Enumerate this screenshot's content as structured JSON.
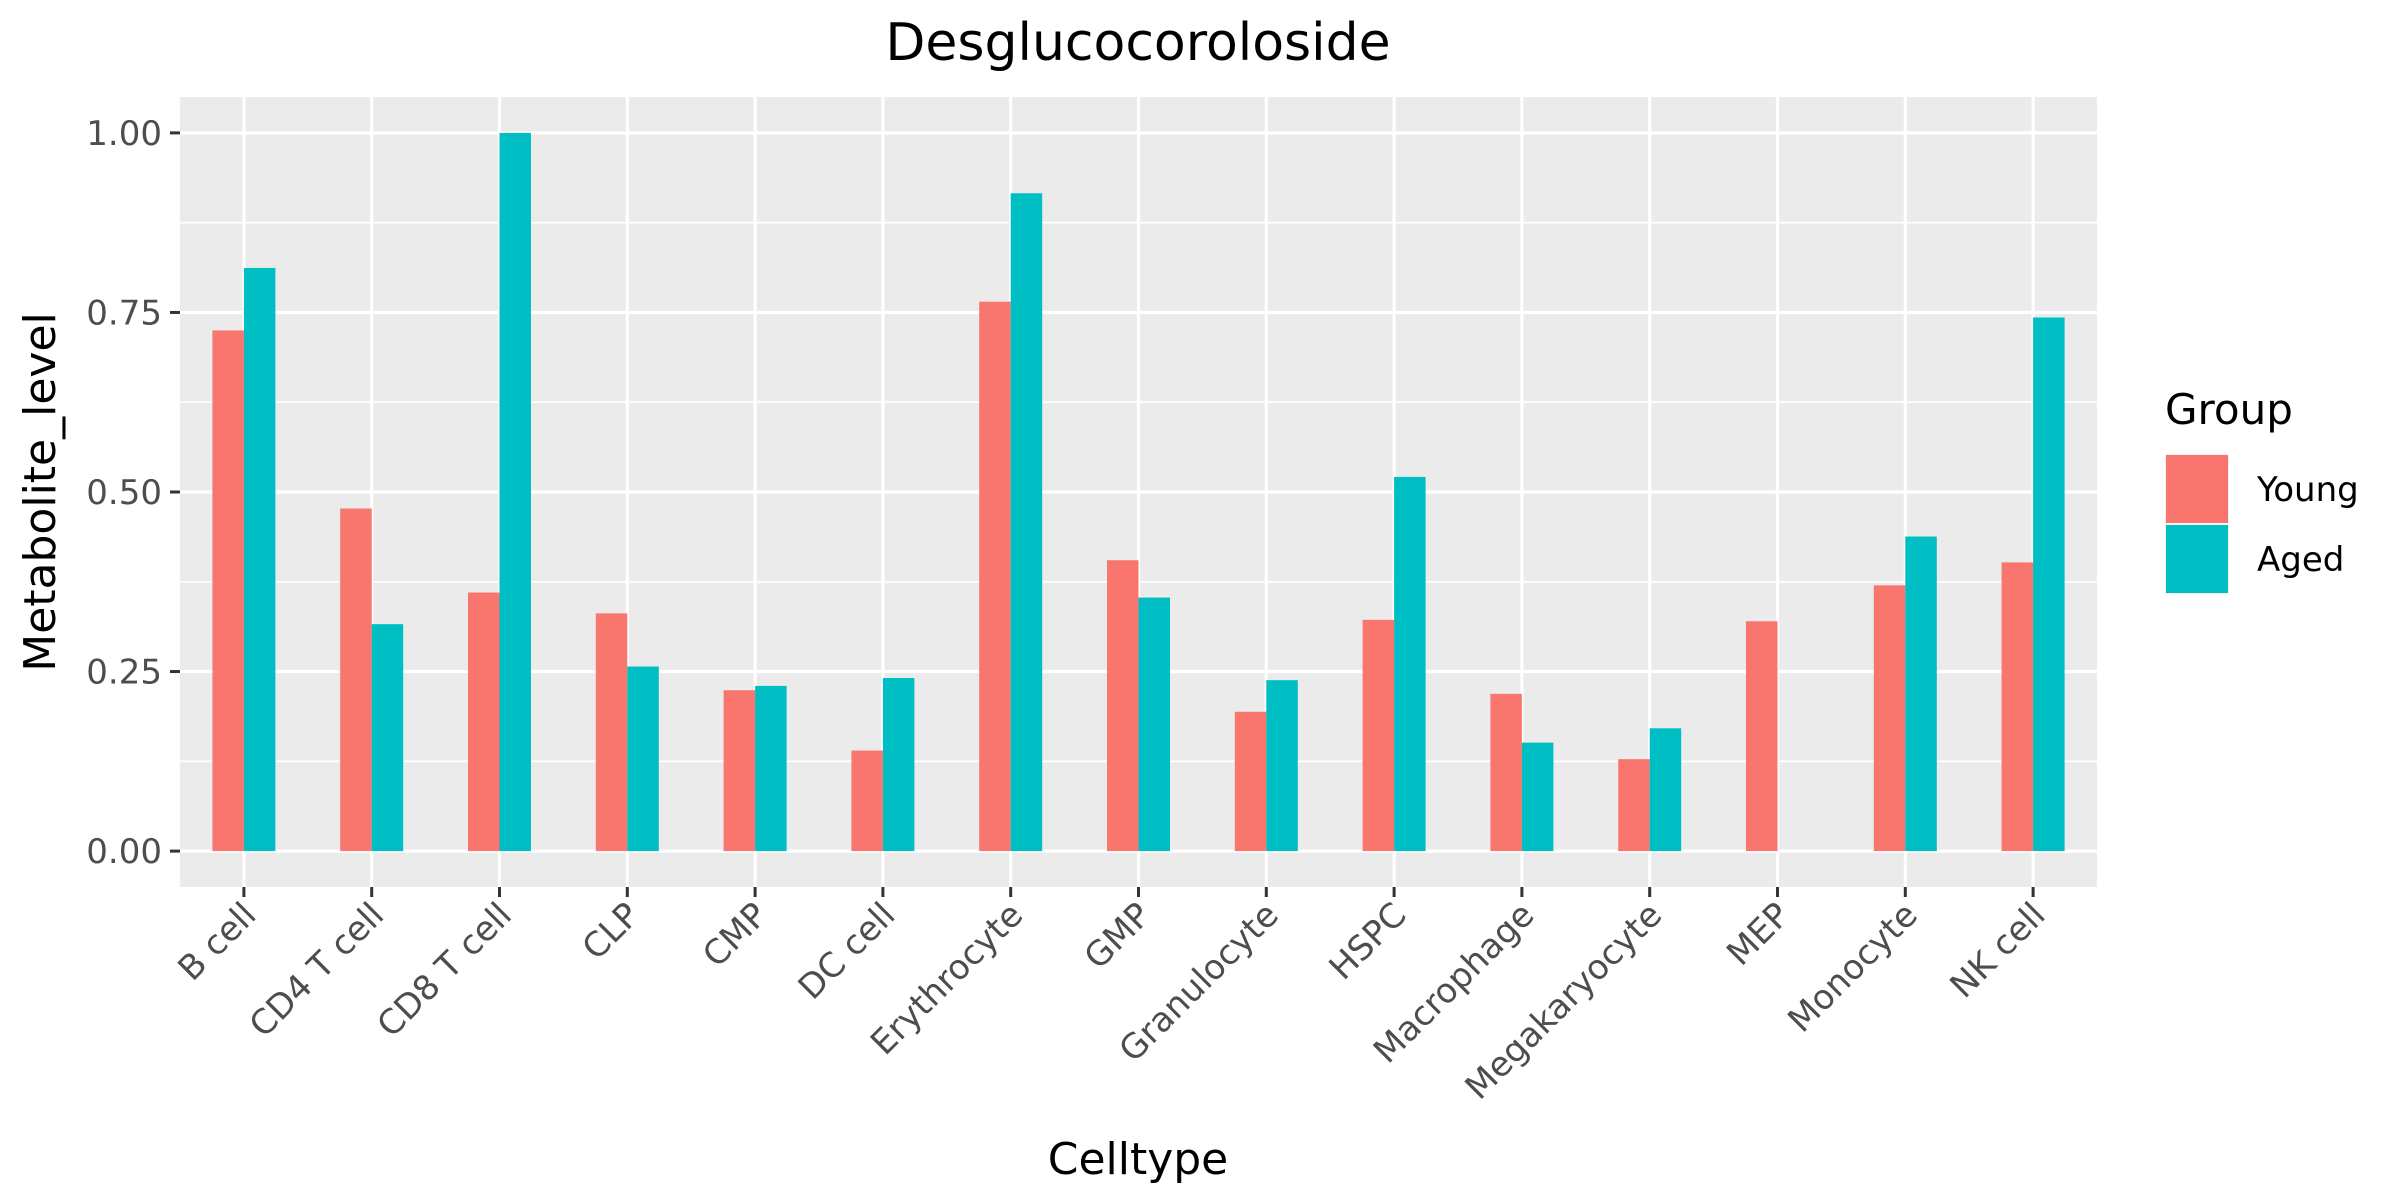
{
  "chart_data": {
    "type": "bar",
    "title": "Desglucocoroloside",
    "xlabel": "Celltype",
    "ylabel": "Metabolite_level",
    "categories": [
      "B cell",
      "CD4 T cell",
      "CD8 T cell",
      "CLP",
      "CMP",
      "DC cell",
      "Erythrocyte",
      "GMP",
      "Granulocyte",
      "HSPC",
      "Macrophage",
      "Megakaryocyte",
      "MEP",
      "Monocyte",
      "NK cell"
    ],
    "series": [
      {
        "name": "Young",
        "color": "#F8766D",
        "values": [
          0.725,
          0.477,
          0.36,
          0.331,
          0.224,
          0.14,
          0.765,
          0.405,
          0.194,
          0.322,
          0.219,
          0.128,
          0.32,
          0.37,
          0.402
        ]
      },
      {
        "name": "Aged",
        "color": "#00BFC4",
        "values": [
          0.812,
          0.316,
          1.0,
          0.257,
          0.23,
          0.241,
          0.916,
          0.353,
          0.238,
          0.521,
          0.151,
          0.171,
          null,
          0.438,
          0.743
        ]
      }
    ],
    "ylim": [
      -0.05,
      1.05
    ],
    "yticks": [
      0,
      0.25,
      0.5,
      0.75,
      1.0
    ],
    "ytick_labels": [
      "0.00",
      "0.25",
      "0.50",
      "0.75",
      "1.00"
    ],
    "legend": {
      "title": "Group",
      "position": "right"
    },
    "grid": true
  }
}
